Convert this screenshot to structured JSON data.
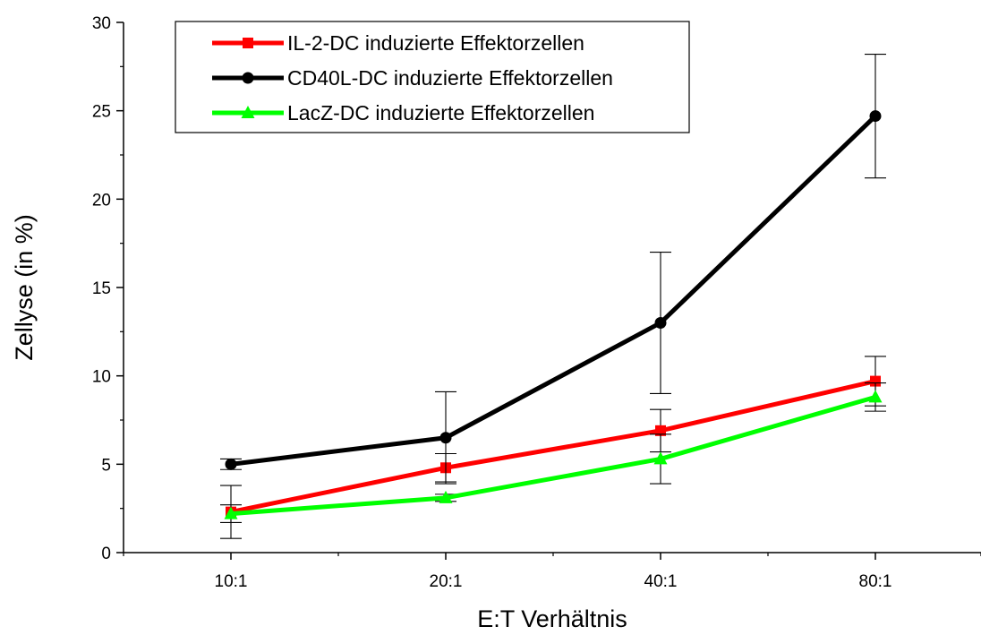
{
  "chart_data": {
    "type": "line",
    "xlabel": "E:T Verhältnis",
    "ylabel": "Zellyse (in %)",
    "categories": [
      "10:1",
      "20:1",
      "40:1",
      "80:1"
    ],
    "ylim": [
      0,
      30
    ],
    "yticks": [
      0,
      5,
      10,
      15,
      20,
      25,
      30
    ],
    "grid": false,
    "legend_position": "top-left",
    "series": [
      {
        "name": "IL-2-DC induzierte Effektorzellen",
        "color": "#ff0000",
        "marker": "square",
        "values": [
          2.3,
          4.8,
          6.9,
          9.7
        ],
        "errors": [
          1.5,
          0.8,
          1.2,
          1.4
        ]
      },
      {
        "name": "CD40L-DC induzierte Effektorzellen",
        "color": "#000000",
        "marker": "circle",
        "values": [
          5.0,
          6.5,
          13.0,
          24.7
        ],
        "errors": [
          0.3,
          2.6,
          4.0,
          3.5
        ]
      },
      {
        "name": "LacZ-DC induzierte Effektorzellen",
        "color": "#00ff00",
        "marker": "triangle",
        "values": [
          2.2,
          3.1,
          5.3,
          8.8
        ],
        "errors": [
          0.5,
          0.2,
          1.4,
          0.8
        ]
      }
    ]
  }
}
